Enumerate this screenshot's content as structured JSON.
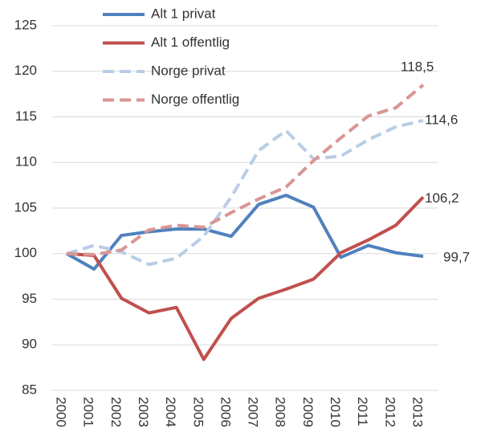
{
  "chart_data": {
    "type": "line",
    "categories": [
      "2000",
      "2001",
      "2002",
      "2003",
      "2004",
      "2005",
      "2006",
      "2007",
      "2008",
      "2009",
      "2010",
      "2011",
      "2012",
      "2013"
    ],
    "series": [
      {
        "name": "Alt 1 privat",
        "color": "#4f81bd",
        "line_style": "solid",
        "values": [
          100,
          98.3,
          102,
          102.4,
          102.7,
          102.7,
          101.9,
          105.4,
          106.4,
          105.1,
          99.6,
          100.9,
          100.1,
          99.7
        ],
        "value_labels": [
          null,
          null,
          null,
          null,
          null,
          null,
          null,
          null,
          null,
          null,
          null,
          null,
          null,
          "99,7"
        ]
      },
      {
        "name": "Alt 1 offentlig",
        "color": "#c0504d",
        "line_style": "solid",
        "values": [
          100,
          99.8,
          95.1,
          93.5,
          94.1,
          88.4,
          92.9,
          95.1,
          96.1,
          97.2,
          100.1,
          101.5,
          103.1,
          106.2
        ],
        "value_labels": [
          null,
          null,
          null,
          null,
          null,
          null,
          null,
          null,
          null,
          null,
          null,
          null,
          null,
          "106,2"
        ]
      },
      {
        "name": "Norge privat",
        "color": "#b9cde5",
        "line_style": "dashed",
        "values": [
          100,
          100.9,
          100.2,
          98.8,
          99.5,
          101.9,
          106.2,
          111.3,
          113.5,
          110.4,
          110.7,
          112.5,
          113.9,
          114.6
        ],
        "value_labels": [
          null,
          null,
          null,
          null,
          null,
          null,
          null,
          null,
          null,
          null,
          null,
          null,
          null,
          "114,6"
        ]
      },
      {
        "name": "Norge offentlig",
        "color": "#d99694",
        "line_style": "dashed",
        "values": [
          100,
          99.9,
          100.4,
          102.6,
          103.1,
          102.9,
          104.5,
          106.0,
          107.3,
          110.2,
          112.7,
          115.1,
          116.0,
          118.5
        ],
        "value_labels": [
          null,
          null,
          null,
          null,
          null,
          null,
          null,
          null,
          null,
          null,
          null,
          null,
          null,
          "118,5"
        ]
      }
    ],
    "ylim": [
      85,
      125
    ],
    "yticks": [
      85,
      90,
      95,
      100,
      105,
      110,
      115,
      120,
      125
    ],
    "grid": true,
    "legend": "upper left"
  }
}
